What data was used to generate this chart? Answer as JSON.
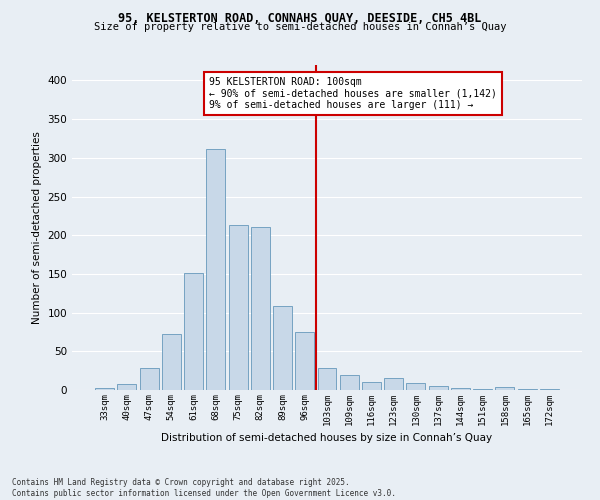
{
  "title1": "95, KELSTERTON ROAD, CONNAHS QUAY, DEESIDE, CH5 4BL",
  "title2": "Size of property relative to semi-detached houses in Connah’s Quay",
  "xlabel": "Distribution of semi-detached houses by size in Connah’s Quay",
  "ylabel": "Number of semi-detached properties",
  "categories": [
    "33sqm",
    "40sqm",
    "47sqm",
    "54sqm",
    "61sqm",
    "68sqm",
    "75sqm",
    "82sqm",
    "89sqm",
    "96sqm",
    "103sqm",
    "109sqm",
    "116sqm",
    "123sqm",
    "130sqm",
    "137sqm",
    "144sqm",
    "151sqm",
    "158sqm",
    "165sqm",
    "172sqm"
  ],
  "values": [
    3,
    8,
    28,
    73,
    151,
    312,
    213,
    211,
    108,
    75,
    28,
    20,
    10,
    16,
    9,
    5,
    2,
    1,
    4,
    1,
    1
  ],
  "bar_color": "#c8d8e8",
  "bar_edge_color": "#6699bb",
  "bg_color": "#e8eef4",
  "grid_color": "#ffffff",
  "vline_x": 9.5,
  "vline_color": "#cc0000",
  "annotation_line1": "95 KELSTERTON ROAD: 100sqm",
  "annotation_line2": "← 90% of semi-detached houses are smaller (1,142)",
  "annotation_line3": "9% of semi-detached houses are larger (111) →",
  "annotation_box_color": "#cc0000",
  "footer1": "Contains HM Land Registry data © Crown copyright and database right 2025.",
  "footer2": "Contains public sector information licensed under the Open Government Licence v3.0.",
  "ylim": [
    0,
    420
  ],
  "yticks": [
    0,
    50,
    100,
    150,
    200,
    250,
    300,
    350,
    400
  ]
}
